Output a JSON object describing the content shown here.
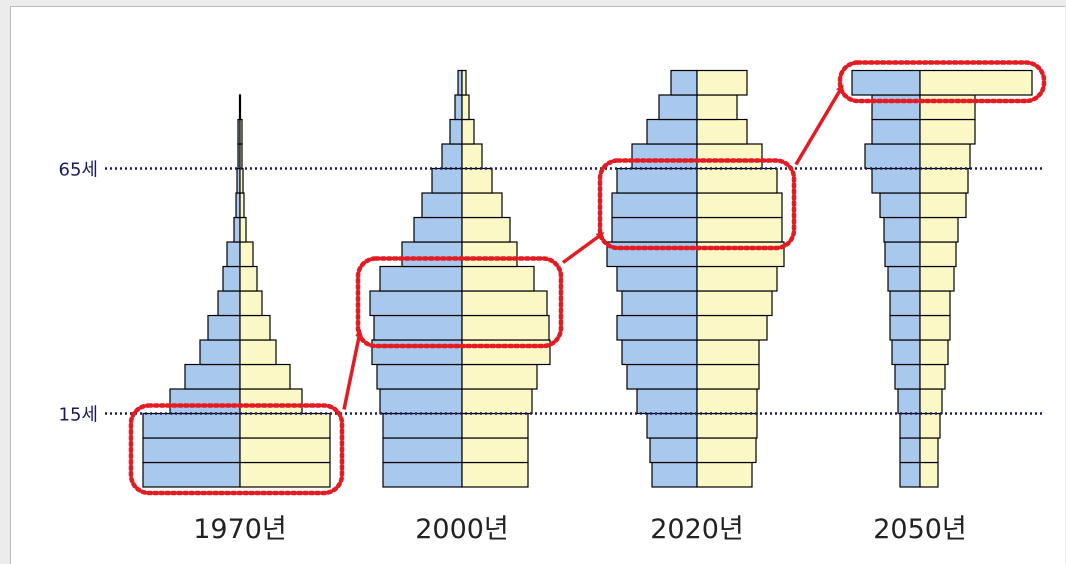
{
  "chart_data": {
    "type": "population-pyramid",
    "reference_lines": [
      {
        "label": "65세",
        "age": 65
      },
      {
        "label": "15세",
        "age": 15
      }
    ],
    "age_groups": [
      "0-4",
      "5-9",
      "10-14",
      "15-19",
      "20-24",
      "25-29",
      "30-34",
      "35-39",
      "40-44",
      "45-49",
      "50-54",
      "55-59",
      "60-64",
      "65-69",
      "70-74",
      "75-79",
      "80-84"
    ],
    "colors": {
      "male": "#a8c8ee",
      "female": "#fbf8c6",
      "highlight": "#e31b23",
      "guide": "#1b1b5e"
    },
    "pyramids": [
      {
        "year": "1970년",
        "male": [
          97,
          97,
          97,
          70,
          55,
          40,
          32,
          22,
          17,
          13,
          6,
          4,
          3,
          2,
          2,
          0.5,
          0
        ],
        "female": [
          90,
          90,
          90,
          62,
          50,
          36,
          30,
          22,
          17,
          13,
          6,
          4,
          3,
          2,
          2,
          0.5,
          0
        ],
        "highlight": {
          "from": "0-4",
          "to": "10-14"
        }
      },
      {
        "year": "2000년",
        "male": [
          79,
          79,
          79,
          82,
          85,
          90,
          88,
          92,
          82,
          60,
          48,
          40,
          30,
          20,
          12,
          7,
          4
        ],
        "female": [
          66,
          66,
          66,
          70,
          75,
          88,
          87,
          85,
          72,
          55,
          48,
          40,
          30,
          20,
          12,
          7,
          4
        ],
        "highlight": {
          "from": "30-34",
          "to": "40-44"
        }
      },
      {
        "year": "2020년",
        "male": [
          45,
          47,
          50,
          60,
          70,
          75,
          80,
          75,
          80,
          90,
          85,
          85,
          80,
          65,
          50,
          38,
          26
        ],
        "female": [
          55,
          59,
          60,
          60,
          62,
          62,
          70,
          75,
          80,
          87,
          85,
          85,
          80,
          65,
          50,
          40,
          50
        ],
        "highlight": {
          "from": "50-54",
          "to": "60-64"
        }
      },
      {
        "year": "2050년",
        "male": [
          20,
          20,
          20,
          22,
          25,
          28,
          30,
          30,
          32,
          35,
          36,
          40,
          48,
          55,
          48,
          48,
          68
        ],
        "female": [
          18,
          18,
          20,
          22,
          25,
          28,
          30,
          30,
          34,
          36,
          38,
          46,
          48,
          50,
          55,
          55,
          112
        ],
        "highlight": {
          "from": "80-84",
          "to": "80-84"
        }
      }
    ]
  }
}
